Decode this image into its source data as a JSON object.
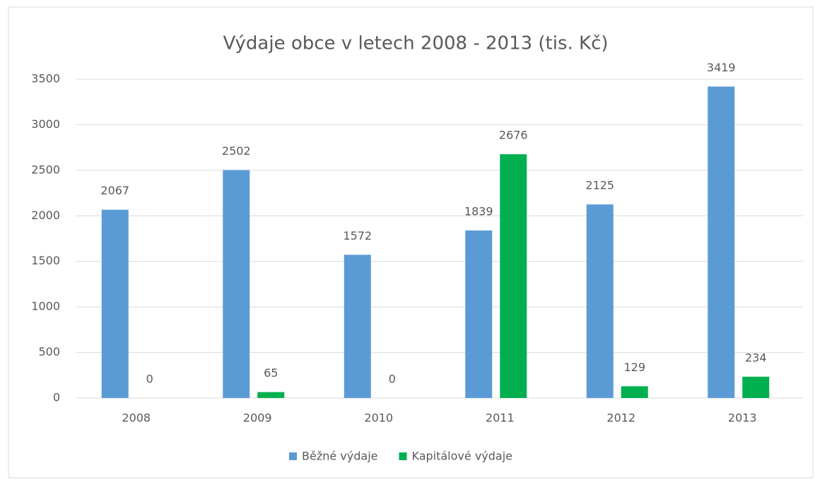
{
  "chart_data": {
    "type": "bar",
    "title": "Výdaje obce v letech 2008 - 2013 (tis. Kč)",
    "categories": [
      "2008",
      "2009",
      "2010",
      "2011",
      "2012",
      "2013"
    ],
    "series": [
      {
        "name": "Běžné výdaje",
        "color": "#5b9bd5",
        "values": [
          2067,
          2502,
          1572,
          1839,
          2125,
          3419
        ]
      },
      {
        "name": "Kapitálové výdaje",
        "color": "#00b050",
        "values": [
          0,
          65,
          0,
          2676,
          129,
          234
        ]
      }
    ],
    "ylim": [
      0,
      3500
    ],
    "yticks": [
      0,
      500,
      1000,
      1500,
      2000,
      2500,
      3000,
      3500
    ],
    "grid": true,
    "legend": "bottom"
  }
}
